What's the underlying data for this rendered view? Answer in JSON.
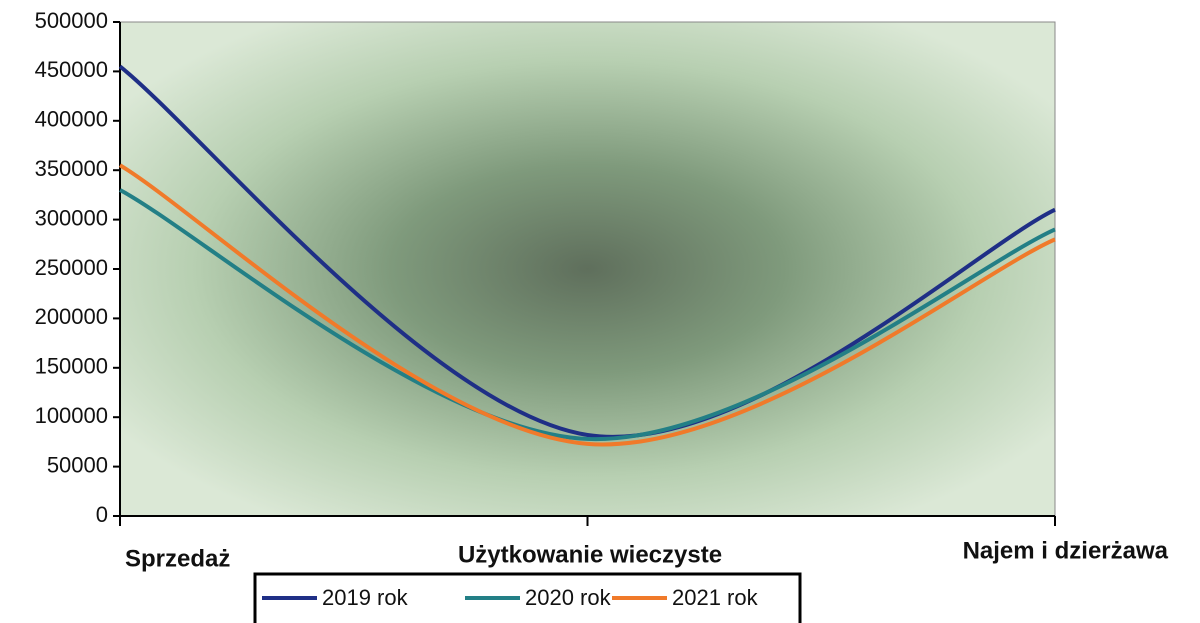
{
  "chart_data": {
    "type": "line",
    "smooth": true,
    "categories": [
      "Sprzedaż",
      "Użytkowanie wieczyste",
      "Najem i dzierżawa"
    ],
    "series": [
      {
        "name": "2019 rok",
        "color": "#1f2f86",
        "values": [
          455000,
          82000,
          310000
        ]
      },
      {
        "name": "2020 rok",
        "color": "#237f86",
        "values": [
          330000,
          78000,
          290000
        ]
      },
      {
        "name": "2021 rok",
        "color": "#f07a2a",
        "values": [
          355000,
          73000,
          280000
        ]
      }
    ],
    "ylim": [
      0,
      500000
    ],
    "yticks": [
      0,
      50000,
      100000,
      150000,
      200000,
      250000,
      300000,
      350000,
      400000,
      450000,
      500000
    ],
    "legend": "bottom"
  }
}
